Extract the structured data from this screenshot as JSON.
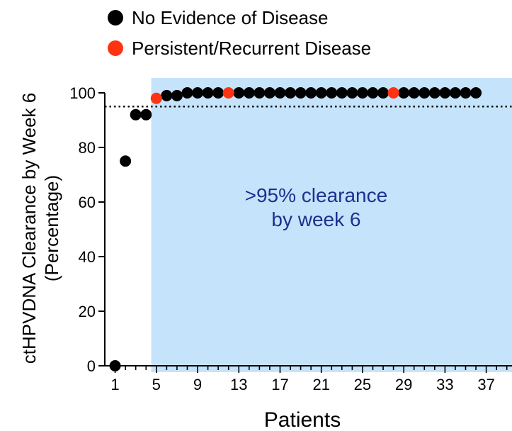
{
  "chart_data": {
    "type": "scatter",
    "xlabel": "Patients",
    "ylabel": [
      "ctHPVDNA Clearance by Week 6",
      "(Percentage)"
    ],
    "xlim": [
      0,
      39.5
    ],
    "ylim": [
      0,
      100
    ],
    "x_ticks": [
      1,
      5,
      9,
      13,
      17,
      21,
      25,
      29,
      33,
      37
    ],
    "y_ticks": [
      0,
      20,
      40,
      60,
      80,
      100
    ],
    "threshold": {
      "y": 95,
      "style": "dotted"
    },
    "shaded_region": {
      "x_start": 4.5,
      "x_end": 39.5,
      "color": "#c5e4fb"
    },
    "annotation": {
      "lines": [
        ">95% clearance",
        "by week 6"
      ],
      "x": 20.5,
      "y": 60,
      "color": "#1f2f8f"
    },
    "legend": {
      "placement": "top-left"
    },
    "series": [
      {
        "name": "No Evidence of Disease",
        "color": "#000000",
        "points": [
          [
            1,
            0
          ],
          [
            2,
            75
          ],
          [
            3,
            92
          ],
          [
            4,
            92
          ],
          [
            6,
            99
          ],
          [
            7,
            99
          ],
          [
            8,
            100
          ],
          [
            9,
            100
          ],
          [
            10,
            100
          ],
          [
            11,
            100
          ],
          [
            13,
            100
          ],
          [
            14,
            100
          ],
          [
            15,
            100
          ],
          [
            16,
            100
          ],
          [
            17,
            100
          ],
          [
            18,
            100
          ],
          [
            19,
            100
          ],
          [
            20,
            100
          ],
          [
            21,
            100
          ],
          [
            22,
            100
          ],
          [
            23,
            100
          ],
          [
            24,
            100
          ],
          [
            25,
            100
          ],
          [
            26,
            100
          ],
          [
            27,
            100
          ],
          [
            29,
            100
          ],
          [
            30,
            100
          ],
          [
            31,
            100
          ],
          [
            32,
            100
          ],
          [
            33,
            100
          ],
          [
            34,
            100
          ],
          [
            35,
            100
          ],
          [
            36,
            100
          ]
        ]
      },
      {
        "name": "Persistent/Recurrent Disease",
        "color": "#ff3311",
        "points": [
          [
            5,
            98
          ],
          [
            12,
            100
          ],
          [
            28,
            100
          ]
        ]
      }
    ]
  }
}
